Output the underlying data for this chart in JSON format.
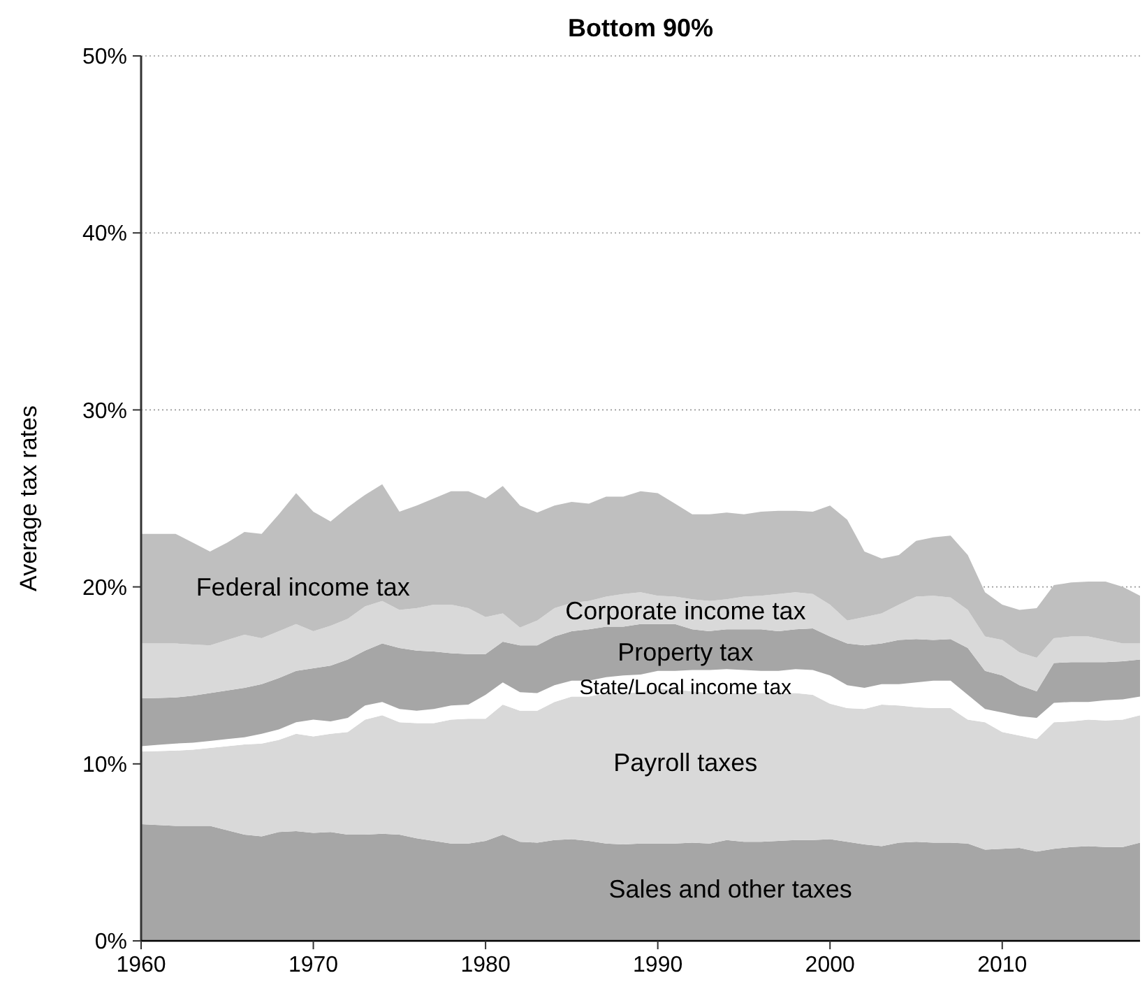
{
  "chart_data": {
    "type": "area",
    "title": "Bottom 90%",
    "ylabel": "Average tax rates",
    "stacked": true,
    "grid": "y",
    "x": [
      1960,
      1961,
      1962,
      1963,
      1964,
      1965,
      1966,
      1967,
      1968,
      1969,
      1970,
      1971,
      1972,
      1973,
      1974,
      1975,
      1976,
      1977,
      1978,
      1979,
      1980,
      1981,
      1982,
      1983,
      1984,
      1985,
      1986,
      1987,
      1988,
      1989,
      1990,
      1991,
      1992,
      1993,
      1994,
      1995,
      1996,
      1997,
      1998,
      1999,
      2000,
      2001,
      2002,
      2003,
      2004,
      2005,
      2006,
      2007,
      2008,
      2009,
      2010,
      2011,
      2012,
      2013,
      2014,
      2015,
      2016,
      2017,
      2018
    ],
    "xlim": [
      1960,
      2018
    ],
    "xticks": [
      1960,
      1970,
      1980,
      1990,
      2000,
      2010
    ],
    "ylim": [
      0,
      50
    ],
    "yticks": [
      {
        "value": 0,
        "label": "0%"
      },
      {
        "value": 10,
        "label": "10%"
      },
      {
        "value": 20,
        "label": "20%"
      },
      {
        "value": 30,
        "label": "30%"
      },
      {
        "value": 40,
        "label": "40%"
      },
      {
        "value": 50,
        "label": "50%"
      }
    ],
    "series": [
      {
        "name": "Sales and other taxes",
        "color": "#a6a6a6",
        "values": [
          6.6,
          6.55,
          6.5,
          6.5,
          6.5,
          6.25,
          6.0,
          5.9,
          6.15,
          6.2,
          6.1,
          6.15,
          6.0,
          6.0,
          6.05,
          6.0,
          5.8,
          5.65,
          5.5,
          5.5,
          5.65,
          6.0,
          5.6,
          5.55,
          5.7,
          5.75,
          5.65,
          5.5,
          5.45,
          5.5,
          5.5,
          5.5,
          5.55,
          5.5,
          5.7,
          5.6,
          5.6,
          5.65,
          5.7,
          5.7,
          5.75,
          5.6,
          5.45,
          5.35,
          5.55,
          5.6,
          5.55,
          5.55,
          5.5,
          5.15,
          5.2,
          5.25,
          5.05,
          5.2,
          5.3,
          5.35,
          5.3,
          5.3,
          5.55
        ]
      },
      {
        "name": "Payroll taxes",
        "color": "#d9d9d9",
        "values": [
          4.1,
          4.17,
          4.25,
          4.3,
          4.4,
          4.75,
          5.1,
          5.25,
          5.2,
          5.5,
          5.45,
          5.55,
          5.8,
          6.5,
          6.7,
          6.35,
          6.5,
          6.65,
          7.0,
          7.05,
          6.9,
          7.35,
          7.4,
          7.45,
          7.8,
          8.05,
          8.15,
          8.5,
          8.55,
          8.55,
          8.75,
          8.7,
          8.55,
          8.5,
          8.3,
          8.4,
          8.4,
          8.35,
          8.3,
          8.2,
          7.65,
          7.55,
          7.65,
          8.0,
          7.75,
          7.6,
          7.6,
          7.6,
          7.0,
          7.2,
          6.6,
          6.35,
          6.35,
          7.15,
          7.1,
          7.15,
          7.15,
          7.2,
          7.2
        ]
      },
      {
        "name": "State/Local income tax",
        "color": "#ffffff",
        "values": [
          0.3,
          0.36,
          0.4,
          0.4,
          0.4,
          0.4,
          0.4,
          0.55,
          0.6,
          0.65,
          0.95,
          0.7,
          0.8,
          0.8,
          0.75,
          0.75,
          0.7,
          0.8,
          0.8,
          0.8,
          1.35,
          1.25,
          1.05,
          1.0,
          0.95,
          0.9,
          0.9,
          0.9,
          1.0,
          1.0,
          1.0,
          1.05,
          1.2,
          1.3,
          1.35,
          1.3,
          1.25,
          1.25,
          1.35,
          1.4,
          1.6,
          1.3,
          1.2,
          1.15,
          1.2,
          1.4,
          1.55,
          1.55,
          1.4,
          0.75,
          1.1,
          1.1,
          1.2,
          1.1,
          1.1,
          1.0,
          1.15,
          1.15,
          1.05
        ]
      },
      {
        "name": "Property tax",
        "color": "#a6a6a6",
        "values": [
          2.7,
          2.64,
          2.6,
          2.65,
          2.7,
          2.75,
          2.8,
          2.8,
          2.9,
          2.9,
          2.9,
          3.15,
          3.3,
          3.1,
          3.3,
          3.45,
          3.4,
          3.25,
          2.95,
          2.85,
          2.3,
          2.3,
          2.65,
          2.7,
          2.75,
          2.8,
          2.9,
          2.85,
          2.75,
          2.85,
          2.65,
          2.65,
          2.3,
          2.2,
          2.25,
          2.3,
          2.35,
          2.25,
          2.25,
          2.35,
          2.2,
          2.35,
          2.4,
          2.3,
          2.5,
          2.45,
          2.3,
          2.35,
          2.65,
          2.15,
          2.1,
          1.75,
          1.5,
          2.25,
          2.25,
          2.25,
          2.15,
          2.15,
          2.1
        ]
      },
      {
        "name": "Corporate income tax",
        "color": "#d9d9d9",
        "values": [
          3.1,
          3.08,
          3.05,
          2.9,
          2.7,
          2.85,
          3.0,
          2.6,
          2.65,
          2.65,
          2.1,
          2.25,
          2.3,
          2.5,
          2.4,
          2.15,
          2.4,
          2.65,
          2.75,
          2.6,
          2.1,
          1.6,
          1.0,
          1.4,
          1.6,
          1.6,
          1.6,
          1.7,
          1.85,
          1.8,
          1.6,
          1.55,
          1.7,
          1.7,
          1.7,
          1.85,
          1.9,
          2.1,
          2.1,
          1.95,
          1.8,
          1.3,
          1.6,
          1.7,
          2.0,
          2.4,
          2.5,
          2.35,
          2.15,
          1.95,
          2.0,
          1.85,
          1.9,
          1.4,
          1.45,
          1.45,
          1.25,
          1.0,
          0.9
        ]
      },
      {
        "name": "Federal income tax",
        "color": "#bfbfbf",
        "values": [
          6.2,
          6.2,
          6.2,
          5.75,
          5.3,
          5.5,
          5.8,
          5.9,
          6.6,
          7.4,
          6.75,
          5.9,
          6.3,
          6.3,
          6.6,
          5.55,
          5.8,
          6.0,
          6.4,
          6.6,
          6.7,
          7.2,
          6.9,
          6.1,
          5.8,
          5.7,
          5.5,
          5.65,
          5.5,
          5.7,
          5.8,
          5.25,
          4.8,
          4.9,
          4.9,
          4.65,
          4.75,
          4.7,
          4.6,
          4.65,
          5.6,
          5.7,
          3.7,
          3.1,
          2.8,
          3.15,
          3.3,
          3.5,
          3.1,
          2.5,
          2.0,
          2.4,
          2.8,
          3.0,
          3.05,
          3.1,
          3.3,
          3.2,
          2.7
        ]
      }
    ]
  }
}
